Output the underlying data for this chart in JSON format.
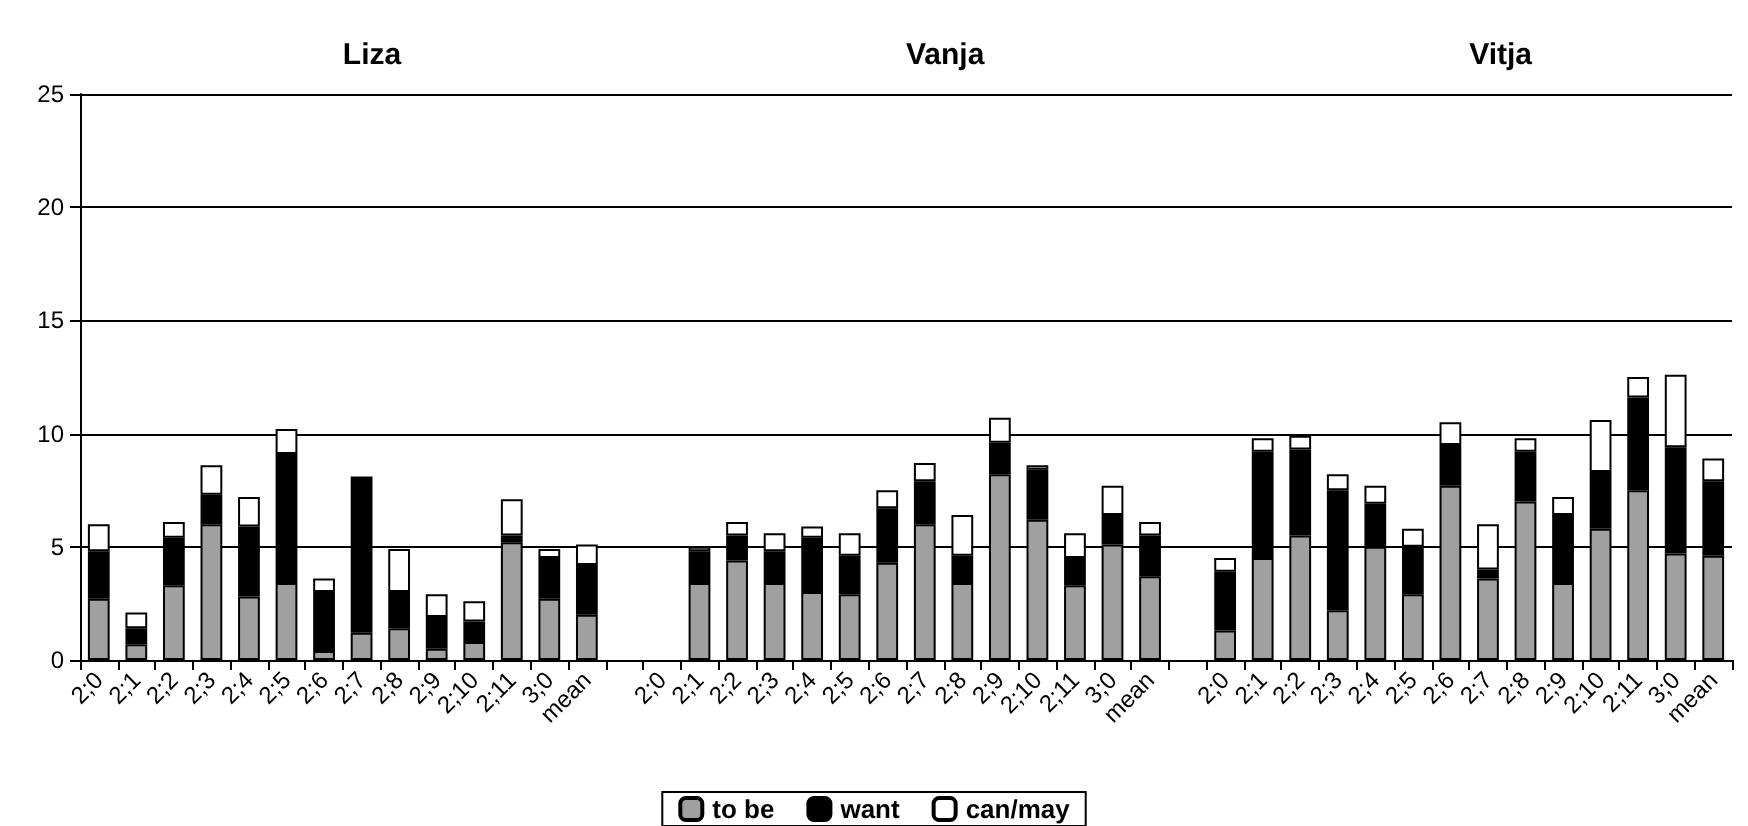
{
  "chart_data": {
    "type": "bar",
    "stacked": true,
    "annotations": [
      "Liza",
      "Vanja",
      "Vitja"
    ],
    "categories": [
      "2;0",
      "2;1",
      "2;2",
      "2;3",
      "2;4",
      "2;5",
      "2;6",
      "2;7",
      "2;8",
      "2;9",
      "2;10",
      "2;11",
      "3;0",
      "mean",
      null,
      "2;0",
      "2;1",
      "2;2",
      "2;3",
      "2;4",
      "2;5",
      "2;6",
      "2;7",
      "2;8",
      "2;9",
      "2;10",
      "2;11",
      "3;0",
      "mean",
      null,
      "2;0",
      "2;1",
      "2;2",
      "2;3",
      "2;4",
      "2;5",
      "2;6",
      "2;7",
      "2;8",
      "2;9",
      "2;10",
      "2;11",
      "3;0",
      "mean"
    ],
    "series": [
      {
        "name": "to be",
        "color": "#a0a0a0",
        "values": [
          2.7,
          0.7,
          3.3,
          6.0,
          2.8,
          3.4,
          0.4,
          1.2,
          1.4,
          0.5,
          0.8,
          5.2,
          2.7,
          2.0,
          null,
          null,
          3.4,
          4.4,
          3.4,
          3.0,
          2.9,
          4.3,
          6.0,
          3.4,
          8.2,
          6.2,
          3.3,
          5.1,
          3.7,
          null,
          1.3,
          4.5,
          5.5,
          2.2,
          5.0,
          2.9,
          7.7,
          3.6,
          7.0,
          3.4,
          5.8,
          7.5,
          4.7,
          4.6
        ]
      },
      {
        "name": "want",
        "color": "#000000",
        "values": [
          2.1,
          0.7,
          2.1,
          1.3,
          3.1,
          5.7,
          2.6,
          6.9,
          1.6,
          1.4,
          0.9,
          0.3,
          1.8,
          2.2,
          null,
          null,
          1.4,
          1.1,
          1.4,
          2.4,
          1.7,
          2.4,
          1.9,
          1.2,
          1.4,
          2.2,
          1.2,
          1.3,
          1.8,
          null,
          2.6,
          4.7,
          3.8,
          5.3,
          1.9,
          2.1,
          1.8,
          0.4,
          2.2,
          3.0,
          2.5,
          4.1,
          4.7,
          3.3
        ]
      },
      {
        "name": "can/may",
        "color": "#ffffff",
        "values": [
          1.2,
          0.7,
          0.7,
          1.3,
          1.3,
          1.1,
          0.6,
          null,
          1.9,
          1.0,
          0.9,
          1.6,
          0.4,
          0.9,
          null,
          null,
          0.2,
          0.6,
          0.8,
          0.5,
          1.0,
          0.8,
          0.8,
          1.8,
          1.1,
          0.2,
          1.1,
          1.3,
          0.6,
          null,
          0.6,
          0.6,
          0.6,
          0.7,
          0.8,
          0.8,
          1.0,
          2.0,
          0.6,
          0.8,
          2.3,
          0.9,
          3.2,
          1.0
        ]
      }
    ],
    "ylim": [
      0,
      25
    ],
    "yticks": [
      0,
      5,
      10,
      15,
      20,
      25
    ],
    "grid": "y",
    "legend": "bottom"
  }
}
